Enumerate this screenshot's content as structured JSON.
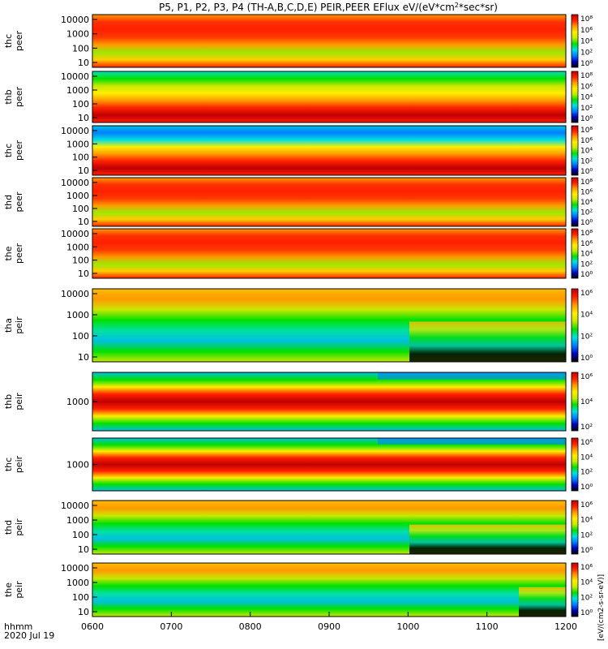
{
  "chart_data": {
    "type": "heatmap",
    "title": "P5, P1, P2, P3, P4 (TH-A,B,C,D,E) PEIR,PEER EFlux eV/(eV*cm²*sec*sr)",
    "title_prefix": "P5, P1, P2, P3, P4 (TH-A,B,C,D,E) PEIR,PEER EFlux eV/(eV*cm",
    "title_sup": "2",
    "title_suffix": "*sec*sr)",
    "xlabel_top": "hhmm",
    "xlabel_bottom": "2020 Jul 19",
    "x_ticks": [
      "0600",
      "0700",
      "0800",
      "0900",
      "1000",
      "1100",
      "1200"
    ],
    "xlim": [
      "0600",
      "1200"
    ],
    "colorbar_label": "[eV/(cm²-s-sr-eV)]",
    "colorbar_label_text": "[eV/(cm2-s-sr-eV)]",
    "colorbar_colors": [
      "#000000",
      "#0000c0",
      "#0080ff",
      "#00e0e0",
      "#00e000",
      "#c8e800",
      "#ffee00",
      "#ff9900",
      "#ff2000",
      "#c00000"
    ],
    "y_scale": "log",
    "panels": [
      {
        "name_line1": "thc",
        "name_line2": "peer",
        "y_ticks": [
          "10000",
          "1000",
          "100",
          "10"
        ],
        "cb_ticks": [
          "10⁸",
          "10⁶",
          "10⁴",
          "10²",
          "10⁰"
        ]
      },
      {
        "name_line1": "thb",
        "name_line2": "peer",
        "y_ticks": [
          "10000",
          "1000",
          "100",
          "10"
        ],
        "cb_ticks": [
          "10⁸",
          "10⁶",
          "10⁴",
          "10²",
          "10⁰"
        ]
      },
      {
        "name_line1": "thc",
        "name_line2": "peer",
        "y_ticks": [
          "10000",
          "1000",
          "100",
          "10"
        ],
        "cb_ticks": [
          "10⁸",
          "10⁶",
          "10⁴",
          "10²",
          "10⁰"
        ]
      },
      {
        "name_line1": "thd",
        "name_line2": "peer",
        "y_ticks": [
          "10000",
          "1000",
          "100",
          "10"
        ],
        "cb_ticks": [
          "10⁸",
          "10⁶",
          "10⁴",
          "10²",
          "10⁰"
        ]
      },
      {
        "name_line1": "the",
        "name_line2": "peer",
        "y_ticks": [
          "10000",
          "1000",
          "100",
          "10"
        ],
        "cb_ticks": [
          "10⁸",
          "10⁶",
          "10⁴",
          "10²",
          "10⁰"
        ]
      },
      {
        "name_line1": "tha",
        "name_line2": "peir",
        "y_ticks": [
          "10000",
          "1000",
          "100",
          "10"
        ],
        "cb_ticks": [
          "10⁶",
          "10⁴",
          "10²",
          "10⁰"
        ]
      },
      {
        "name_line1": "thb",
        "name_line2": "peir",
        "y_ticks": [
          "1000"
        ],
        "cb_ticks": [
          "10⁶",
          "10⁴",
          "10²"
        ]
      },
      {
        "name_line1": "thc",
        "name_line2": "peir",
        "y_ticks": [
          "1000"
        ],
        "cb_ticks": [
          "10⁶",
          "10⁴",
          "10²",
          "10⁰"
        ]
      },
      {
        "name_line1": "thd",
        "name_line2": "peir",
        "y_ticks": [
          "10000",
          "1000",
          "100",
          "10"
        ],
        "cb_ticks": [
          "10⁶",
          "10⁴",
          "10²",
          "10⁰"
        ]
      },
      {
        "name_line1": "the",
        "name_line2": "peir",
        "y_ticks": [
          "10000",
          "1000",
          "100",
          "10"
        ],
        "cb_ticks": [
          "10⁶",
          "10⁴",
          "10²",
          "10⁰"
        ]
      }
    ]
  }
}
